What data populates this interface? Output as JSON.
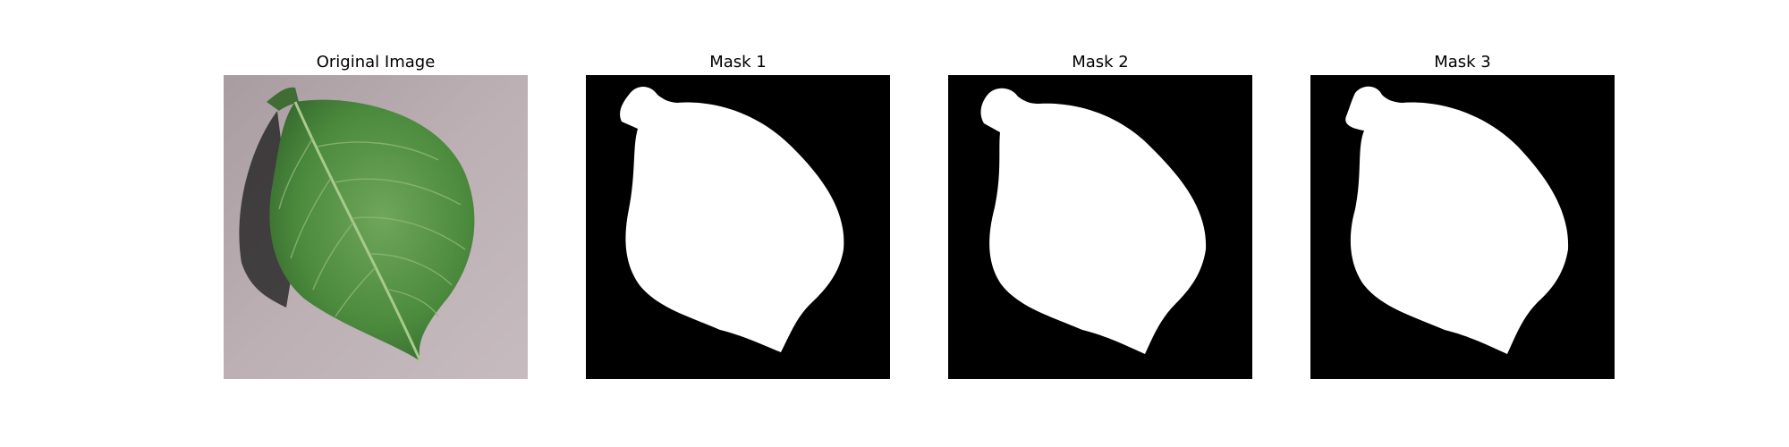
{
  "panels": [
    {
      "title": "Original Image",
      "kind": "photo"
    },
    {
      "title": "Mask 1",
      "kind": "mask"
    },
    {
      "title": "Mask 2",
      "kind": "mask"
    },
    {
      "title": "Mask 3",
      "kind": "mask"
    }
  ],
  "colors": {
    "background_surface": "#b6a9ad",
    "leaf_dark": "#2f5e2a",
    "leaf_mid": "#4b8a3d",
    "leaf_light": "#6fa65a",
    "mask_bg": "#000000",
    "mask_fg": "#ffffff"
  }
}
